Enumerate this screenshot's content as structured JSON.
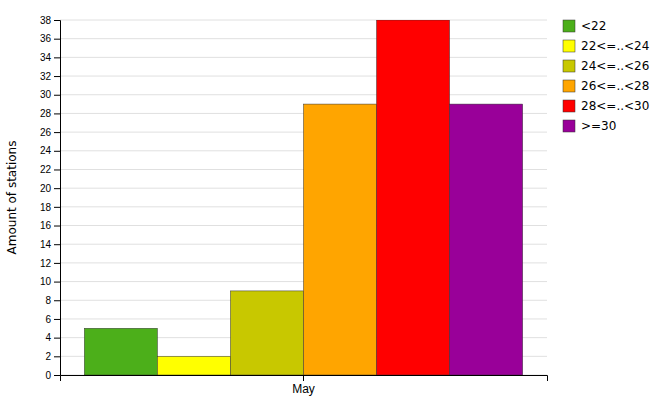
{
  "chart_data": {
    "type": "bar",
    "categories": [
      "May"
    ],
    "series": [
      {
        "name": "<22",
        "color": "#4caf1a",
        "values": [
          5
        ]
      },
      {
        "name": "22<=..<24",
        "color": "#ffff00",
        "values": [
          2
        ]
      },
      {
        "name": "24<=..<26",
        "color": "#c8c800",
        "values": [
          9
        ]
      },
      {
        "name": "26<=..<28",
        "color": "#ffa500",
        "values": [
          29
        ]
      },
      {
        "name": "28<=..<30",
        "color": "#ff0000",
        "values": [
          38
        ]
      },
      {
        "name": ">=30",
        "color": "#990099",
        "values": [
          29
        ]
      }
    ],
    "ylabel": "Amount of stations",
    "ylim": [
      0,
      38
    ],
    "yticks": [
      0,
      2,
      4,
      6,
      8,
      10,
      12,
      14,
      16,
      18,
      20,
      22,
      24,
      26,
      28,
      30,
      32,
      34,
      36,
      38
    ],
    "grid": true,
    "legend": "right"
  }
}
